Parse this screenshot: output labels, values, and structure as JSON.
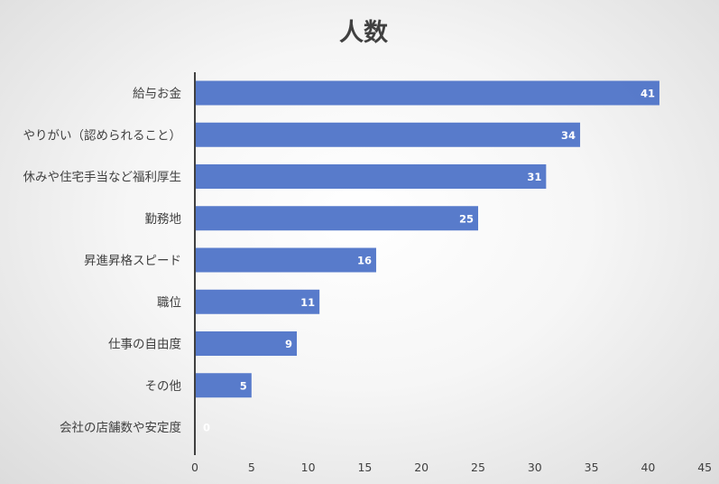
{
  "chart_data": {
    "type": "bar",
    "orientation": "horizontal",
    "title": "人数",
    "categories": [
      "給与お金",
      "やりがい（認められること）",
      "休みや住宅手当など福利厚生",
      "勤務地",
      "昇進昇格スピード",
      "職位",
      "仕事の自由度",
      "その他",
      "会社の店舗数や安定度"
    ],
    "values": [
      41,
      34,
      31,
      25,
      16,
      11,
      9,
      5,
      0
    ],
    "xlim": [
      0,
      45
    ],
    "xticks": [
      0,
      5,
      10,
      15,
      20,
      25,
      30,
      35,
      40,
      45
    ],
    "xlabel": "",
    "ylabel": "",
    "data_labels": true,
    "grid": false,
    "legend": "none",
    "colors": {
      "bar": "#4f74c8",
      "label": "#ffffff",
      "text": "#404040",
      "axis": "#404040"
    }
  }
}
